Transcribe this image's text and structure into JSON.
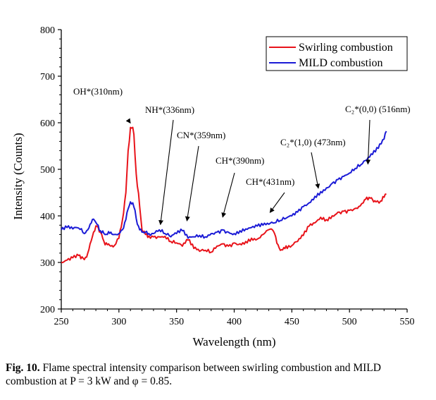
{
  "chart_data": {
    "type": "line",
    "xlabel": "Wavelength (nm)",
    "ylabel": "Intensity (Counts)",
    "xlim": [
      250,
      550
    ],
    "ylim": [
      200,
      800
    ],
    "xticks": [
      250,
      300,
      350,
      400,
      450,
      500,
      550
    ],
    "yticks": [
      200,
      300,
      400,
      500,
      600,
      700,
      800
    ],
    "grid": false,
    "legend_position": "top-right",
    "series": [
      {
        "name": "Swirling combustion",
        "color": "#e8131a",
        "x": [
          250,
          255,
          260,
          265,
          268,
          270,
          273,
          275,
          278,
          281,
          284,
          287,
          290,
          293,
          296,
          300,
          303,
          306,
          308,
          310,
          312,
          313,
          315,
          318,
          320,
          323,
          326,
          330,
          335,
          340,
          345,
          350,
          355,
          360,
          365,
          370,
          375,
          380,
          385,
          390,
          395,
          400,
          405,
          410,
          415,
          420,
          425,
          428,
          432,
          435,
          438,
          440,
          443,
          446,
          450,
          455,
          460,
          465,
          470,
          475,
          480,
          485,
          490,
          495,
          500,
          505,
          508,
          512,
          515,
          518,
          520,
          523,
          527,
          530,
          532
        ],
        "y": [
          300,
          305,
          310,
          315,
          312,
          306,
          320,
          340,
          365,
          378,
          365,
          345,
          338,
          335,
          336,
          352,
          390,
          450,
          540,
          590,
          590,
          575,
          490,
          420,
          370,
          360,
          357,
          355,
          355,
          356,
          345,
          342,
          335,
          348,
          330,
          324,
          326,
          322,
          335,
          340,
          335,
          342,
          340,
          345,
          352,
          350,
          360,
          368,
          372,
          362,
          338,
          326,
          332,
          330,
          336,
          345,
          358,
          378,
          385,
          397,
          392,
          400,
          408,
          410,
          412,
          416,
          420,
          428,
          440,
          438,
          435,
          430,
          432,
          440,
          447
        ]
      },
      {
        "name": "MILD combustion",
        "color": "#1b1bd6",
        "x": [
          250,
          255,
          260,
          265,
          270,
          273,
          275,
          278,
          281,
          284,
          287,
          290,
          293,
          296,
          300,
          303,
          306,
          308,
          310,
          312,
          314,
          316,
          318,
          320,
          323,
          326,
          330,
          335,
          340,
          345,
          350,
          355,
          360,
          365,
          370,
          375,
          380,
          385,
          390,
          395,
          400,
          405,
          410,
          415,
          420,
          425,
          430,
          435,
          440,
          445,
          450,
          455,
          460,
          465,
          470,
          475,
          480,
          485,
          490,
          495,
          500,
          505,
          510,
          515,
          520,
          525,
          530,
          532
        ],
        "y": [
          370,
          375,
          372,
          374,
          362,
          370,
          382,
          393,
          382,
          368,
          362,
          360,
          365,
          360,
          362,
          370,
          392,
          415,
          430,
          428,
          412,
          382,
          370,
          365,
          365,
          362,
          362,
          370,
          362,
          355,
          362,
          368,
          352,
          355,
          358,
          355,
          362,
          365,
          370,
          365,
          362,
          368,
          372,
          375,
          378,
          380,
          382,
          385,
          390,
          395,
          400,
          408,
          420,
          428,
          442,
          452,
          460,
          470,
          478,
          485,
          492,
          502,
          510,
          520,
          532,
          545,
          565,
          582
        ]
      }
    ],
    "annotations": [
      {
        "text": "OH*(310nm)",
        "x": 310,
        "y": 590
      },
      {
        "text": "NH*(336nm)",
        "x": 336,
        "y": 372
      },
      {
        "text": "CN*(359nm)",
        "x": 359,
        "y": 380
      },
      {
        "text": "CH*(390nm)",
        "x": 390,
        "y": 388
      },
      {
        "text": "CH*(431nm)",
        "x": 431,
        "y": 398
      },
      {
        "text": "C₂*(1,0) (473nm)",
        "x": 473,
        "y": 450
      },
      {
        "text": "C₂*(0,0) (516nm)",
        "x": 516,
        "y": 502
      }
    ]
  },
  "caption": {
    "label": "Fig. 10.",
    "text": "Flame spectral intensity comparison between swirling combustion and MILD combustion at P = 3 kW and φ = 0.85."
  }
}
